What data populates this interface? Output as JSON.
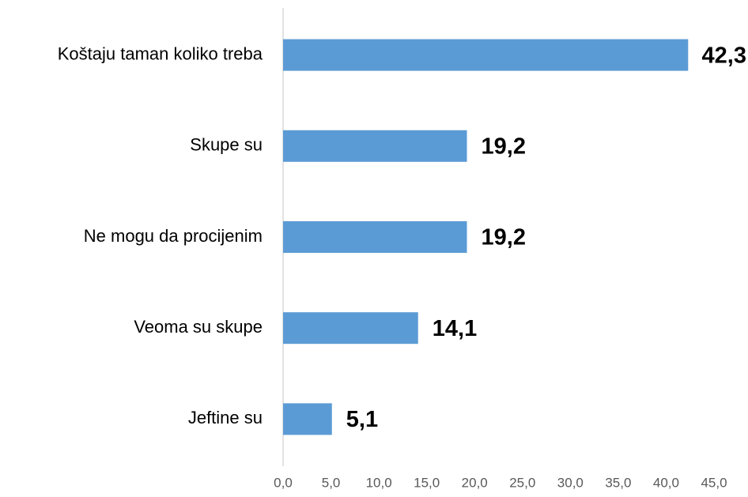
{
  "chart_data": {
    "type": "bar",
    "orientation": "horizontal",
    "categories": [
      "Koštaju taman koliko treba",
      "Skupe su",
      "Ne mogu da procijenim",
      "Veoma su skupe",
      "Jeftine su"
    ],
    "values": [
      42.3,
      19.2,
      19.2,
      14.1,
      5.1
    ],
    "value_labels": [
      "42,3",
      "19,2",
      "19,2",
      "14,1",
      "5,1"
    ],
    "color": "#5b9bd5",
    "xlim": [
      0,
      45
    ],
    "xticks": [
      {
        "value": 0,
        "label": "0,0"
      },
      {
        "value": 5,
        "label": "5,0"
      },
      {
        "value": 10,
        "label": "10,0"
      },
      {
        "value": 15,
        "label": "15,0"
      },
      {
        "value": 20,
        "label": "20,0"
      },
      {
        "value": 25,
        "label": "25,0"
      },
      {
        "value": 30,
        "label": "30,0"
      },
      {
        "value": 35,
        "label": "35,0"
      },
      {
        "value": 40,
        "label": "40,0"
      },
      {
        "value": 45,
        "label": "45,0"
      }
    ],
    "grid": false
  }
}
